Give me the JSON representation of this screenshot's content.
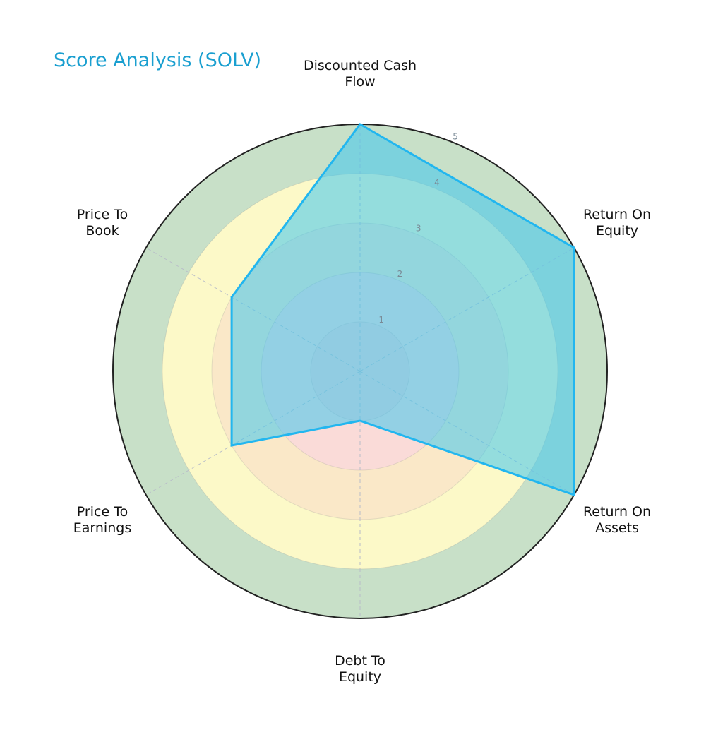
{
  "title": "Score Analysis (SOLV)",
  "colors": {
    "title": "#1a9fd0",
    "polygon_fill": "#3ec6ef",
    "polygon_stroke": "#22b6ef",
    "outer_circle": "#222222",
    "ring_bands": [
      "#f7d3d3",
      "#fadbd8",
      "#fae8c8",
      "#fcf9c8",
      "#c8e0c8"
    ]
  },
  "chart_data": {
    "type": "radar",
    "title": "Score Analysis (SOLV)",
    "categories": [
      "Discounted Cash Flow",
      "Return On Equity",
      "Return On Assets",
      "Debt To Equity",
      "Price To Earnings",
      "Price To Book"
    ],
    "series": [
      {
        "name": "SOLV",
        "values": [
          5,
          5,
          5,
          1,
          3,
          3
        ]
      }
    ],
    "rlim": [
      0,
      5
    ],
    "radial_ticks": [
      "1",
      "2",
      "3",
      "4",
      "5"
    ],
    "grid": true,
    "legend": "none"
  },
  "axes": [
    {
      "line1": "Discounted Cash",
      "line2": "Flow"
    },
    {
      "line1": "Return On",
      "line2": "Equity"
    },
    {
      "line1": "Return On",
      "line2": "Assets"
    },
    {
      "line1": "Debt To",
      "line2": "Equity"
    },
    {
      "line1": "Price To",
      "line2": "Earnings"
    },
    {
      "line1": "Price To",
      "line2": "Book"
    }
  ],
  "ticks": [
    "1",
    "2",
    "3",
    "4",
    "5"
  ]
}
